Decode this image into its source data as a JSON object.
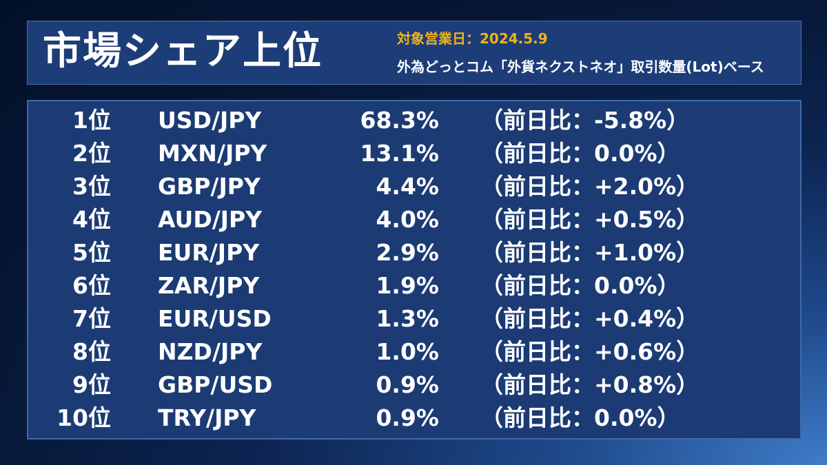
{
  "header": {
    "title": "市場シェア上位",
    "date": "対象営業日：2024.5.9",
    "subtitle": "外為どっとコム「外貨ネクストネオ」取引数量(Lot)ベース"
  },
  "rows": [
    {
      "rank": "1位",
      "pair": "USD/JPY",
      "share": "68.3%",
      "change": "（前日比：-5.8%）"
    },
    {
      "rank": "2位",
      "pair": "MXN/JPY",
      "share": "13.1%",
      "change": "（前日比：0.0%）"
    },
    {
      "rank": "3位",
      "pair": "GBP/JPY",
      "share": "4.4%",
      "change": "（前日比：+2.0%）"
    },
    {
      "rank": "4位",
      "pair": "AUD/JPY",
      "share": "4.0%",
      "change": "（前日比：+0.5%）"
    },
    {
      "rank": "5位",
      "pair": "EUR/JPY",
      "share": "2.9%",
      "change": "（前日比：+1.0%）"
    },
    {
      "rank": "6位",
      "pair": "ZAR/JPY",
      "share": "1.9%",
      "change": "（前日比：0.0%）"
    },
    {
      "rank": "7位",
      "pair": "EUR/USD",
      "share": "1.3%",
      "change": "（前日比：+0.4%）"
    },
    {
      "rank": "8位",
      "pair": "NZD/JPY",
      "share": "1.0%",
      "change": "（前日比：+0.6%）"
    },
    {
      "rank": "9位",
      "pair": "GBP/USD",
      "share": "0.9%",
      "change": "（前日比：+0.8%）"
    },
    {
      "rank": "10位",
      "pair": "TRY/JPY",
      "share": "0.9%",
      "change": "（前日比：0.0%）"
    }
  ],
  "colors": {
    "accent_date": "#f2b21b",
    "text": "#ffffff",
    "panel_bg": "#1c3b74",
    "header_bg": "#1d3d78"
  }
}
